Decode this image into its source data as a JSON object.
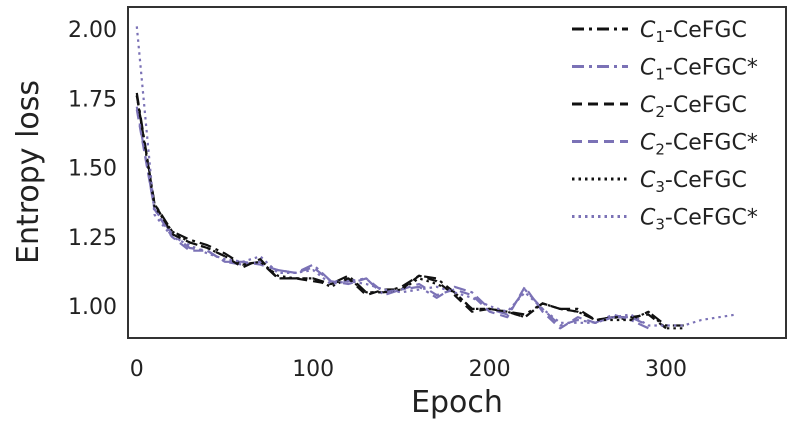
{
  "chart_data": {
    "type": "line",
    "title": "",
    "xlabel": "Epoch",
    "ylabel": "Entropy loss",
    "xlim": [
      -5,
      368
    ],
    "ylim": [
      0.885,
      2.08
    ],
    "xticks": [
      "0",
      "100",
      "200",
      "300"
    ],
    "xtick_values": [
      0,
      100,
      200,
      300
    ],
    "yticks": [
      "1.00",
      "1.25",
      "1.50",
      "1.75",
      "2.00"
    ],
    "ytick_values": [
      1.0,
      1.25,
      1.5,
      1.75,
      2.0
    ],
    "grid": false,
    "legend_position": "top-right",
    "colors": {
      "black": "#111111",
      "purple": "#7b72b6",
      "axes": "#333333"
    },
    "series": [
      {
        "name": "C1-CeFGC",
        "label_main": "C",
        "label_sub": "1",
        "label_rest": "-CeFGC",
        "color": "#111111",
        "dash": "dashdot",
        "x": [
          0,
          10,
          20,
          30,
          40,
          50,
          60,
          70,
          80,
          90,
          100,
          110,
          120,
          130,
          140,
          150,
          160,
          170,
          180,
          190,
          200,
          210,
          220,
          230,
          240,
          250,
          260,
          270,
          280,
          290,
          300,
          310
        ],
        "y": [
          1.77,
          1.37,
          1.27,
          1.24,
          1.22,
          1.19,
          1.15,
          1.16,
          1.1,
          1.1,
          1.1,
          1.08,
          1.11,
          1.05,
          1.05,
          1.07,
          1.11,
          1.1,
          1.05,
          0.99,
          0.99,
          0.98,
          0.97,
          1.01,
          0.99,
          0.99,
          0.95,
          0.96,
          0.95,
          0.98,
          0.93,
          0.93
        ]
      },
      {
        "name": "C1-CeFGC*",
        "label_main": "C",
        "label_sub": "1",
        "label_rest": "-CeFGC*",
        "color": "#7b72b6",
        "dash": "dashdot",
        "x": [
          0,
          10,
          20,
          30,
          40,
          50,
          60,
          70,
          80,
          90,
          100,
          110,
          120,
          130,
          140,
          150,
          160,
          170,
          180,
          190,
          200,
          210,
          220,
          230,
          240,
          250,
          260,
          270,
          280,
          290
        ],
        "y": [
          1.72,
          1.35,
          1.26,
          1.21,
          1.2,
          1.16,
          1.15,
          1.16,
          1.13,
          1.12,
          1.15,
          1.09,
          1.09,
          1.1,
          1.04,
          1.06,
          1.07,
          1.03,
          1.07,
          1.05,
          0.99,
          0.97,
          1.06,
          0.99,
          0.93,
          0.95,
          0.94,
          0.97,
          0.95,
          0.92
        ]
      },
      {
        "name": "C2-CeFGC",
        "label_main": "C",
        "label_sub": "2",
        "label_rest": "-CeFGC",
        "color": "#111111",
        "dash": "dashed",
        "x": [
          0,
          10,
          20,
          30,
          40,
          50,
          60,
          70,
          80,
          90,
          100,
          110,
          120,
          130,
          140,
          150,
          160,
          170,
          180,
          190,
          200,
          210,
          220,
          230,
          240,
          250,
          260,
          270,
          280,
          290,
          300
        ],
        "y": [
          1.76,
          1.37,
          1.26,
          1.23,
          1.21,
          1.18,
          1.14,
          1.17,
          1.1,
          1.1,
          1.09,
          1.08,
          1.1,
          1.04,
          1.06,
          1.06,
          1.11,
          1.09,
          1.04,
          0.98,
          0.99,
          0.98,
          0.96,
          1.01,
          0.99,
          0.98,
          0.95,
          0.96,
          0.96,
          0.97,
          0.92
        ]
      },
      {
        "name": "C2-CeFGC*",
        "label_main": "C",
        "label_sub": "2",
        "label_rest": "-CeFGC*",
        "color": "#7b72b6",
        "dash": "dashed",
        "x": [
          0,
          10,
          20,
          30,
          40,
          50,
          60,
          70,
          80,
          90,
          100,
          110,
          120,
          130,
          140,
          150,
          160,
          170,
          180,
          190,
          200,
          210,
          220,
          230,
          240,
          250,
          260,
          270,
          280,
          290
        ],
        "y": [
          1.71,
          1.35,
          1.25,
          1.2,
          1.2,
          1.16,
          1.16,
          1.15,
          1.13,
          1.12,
          1.14,
          1.09,
          1.08,
          1.1,
          1.05,
          1.06,
          1.08,
          1.04,
          1.06,
          1.04,
          0.98,
          0.96,
          1.07,
          0.98,
          0.92,
          0.96,
          0.94,
          0.96,
          0.96,
          0.93
        ]
      },
      {
        "name": "C3-CeFGC",
        "label_main": "C",
        "label_sub": "3",
        "label_rest": "-CeFGC",
        "color": "#111111",
        "dash": "dotted",
        "x": [
          0,
          10,
          20,
          30,
          40,
          50,
          60,
          70,
          80,
          90,
          100,
          110,
          120,
          130,
          140,
          150,
          160,
          170,
          180,
          190,
          200,
          210,
          220,
          230,
          240,
          250,
          260,
          270,
          280,
          290,
          300,
          310
        ],
        "y": [
          1.76,
          1.36,
          1.27,
          1.23,
          1.21,
          1.18,
          1.15,
          1.16,
          1.11,
          1.1,
          1.1,
          1.07,
          1.1,
          1.05,
          1.05,
          1.06,
          1.1,
          1.08,
          1.05,
          0.99,
          0.99,
          0.98,
          0.96,
          1.01,
          0.99,
          0.98,
          0.95,
          0.95,
          0.95,
          0.98,
          0.92,
          0.92
        ]
      },
      {
        "name": "C3-CeFGC*",
        "label_main": "C",
        "label_sub": "3",
        "label_rest": "-CeFGC*",
        "color": "#7b72b6",
        "dash": "dotted",
        "x": [
          0,
          10,
          20,
          30,
          40,
          50,
          60,
          70,
          80,
          90,
          100,
          110,
          120,
          130,
          140,
          150,
          160,
          170,
          180,
          190,
          200,
          210,
          220,
          230,
          240,
          250,
          260,
          270,
          280,
          290,
          300,
          310,
          320,
          330,
          340
        ],
        "y": [
          2.01,
          1.33,
          1.25,
          1.22,
          1.19,
          1.17,
          1.16,
          1.18,
          1.12,
          1.12,
          1.13,
          1.08,
          1.09,
          1.08,
          1.06,
          1.05,
          1.06,
          1.07,
          1.05,
          1.03,
          1.0,
          0.98,
          1.05,
          0.99,
          0.94,
          0.94,
          0.94,
          0.96,
          0.97,
          0.93,
          0.93,
          0.93,
          0.95,
          0.96,
          0.97
        ]
      }
    ]
  }
}
